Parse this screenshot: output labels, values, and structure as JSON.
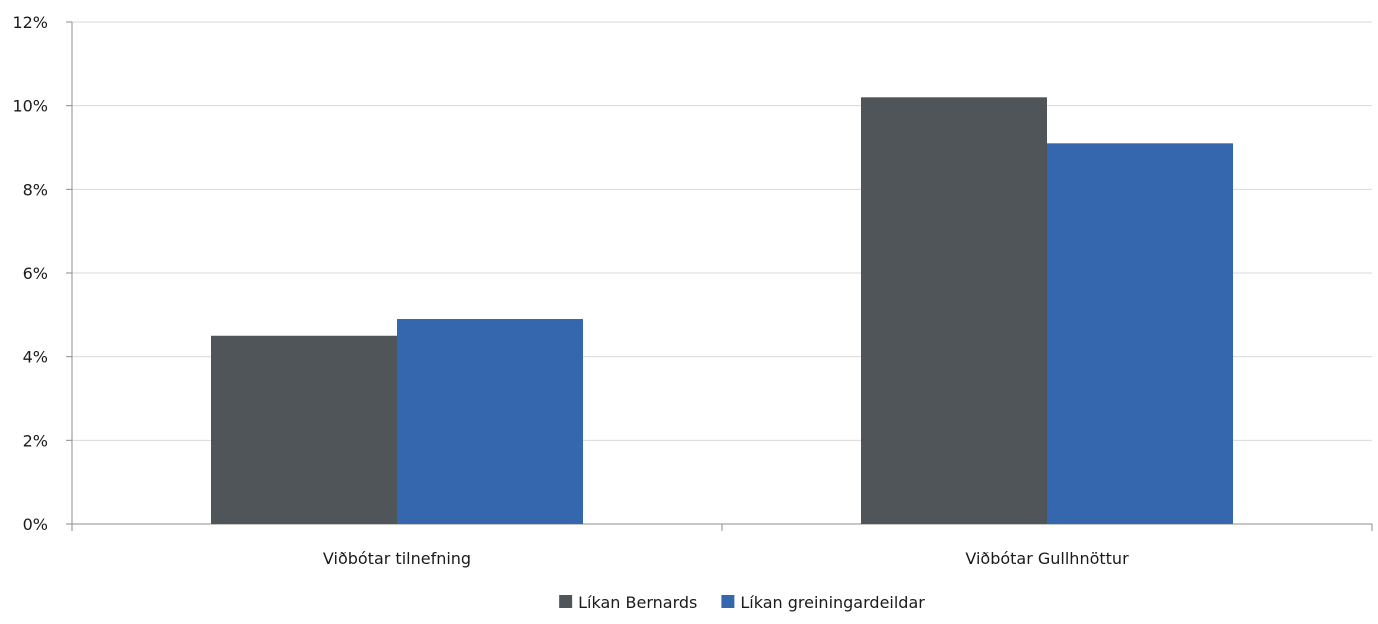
{
  "chart_data": {
    "type": "bar",
    "categories": [
      "Viðbótar tilnefning",
      "Viðbótar Gullhnöttur"
    ],
    "series": [
      {
        "name": "Líkan Bernards",
        "color": "#505559",
        "values": [
          4.5,
          10.2
        ]
      },
      {
        "name": "Líkan greiningardeildar",
        "color": "#3567AE",
        "values": [
          4.9,
          9.1
        ]
      }
    ],
    "ylim": [
      0,
      12
    ],
    "yticks": [
      0,
      2,
      4,
      6,
      8,
      10,
      12
    ],
    "ytick_suffix": "%",
    "grid": true,
    "legend": "bottom-center",
    "title": "",
    "xlabel": "",
    "ylabel": ""
  }
}
